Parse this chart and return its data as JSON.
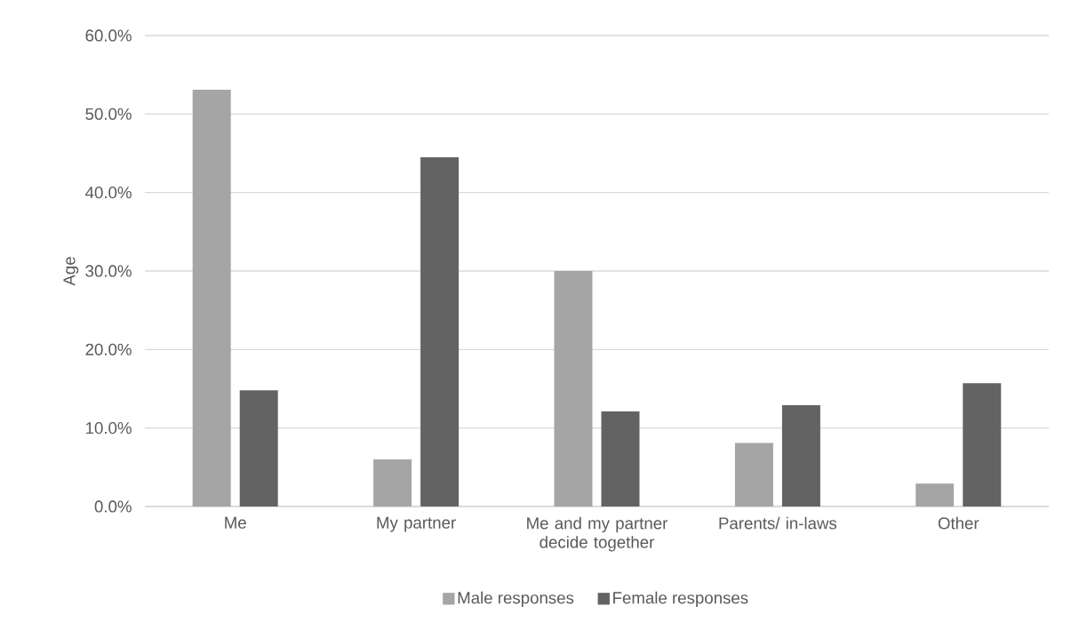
{
  "chart_data": {
    "type": "bar",
    "ylabel": "Age",
    "categories": [
      "Me",
      "My partner",
      "Me and my partner decide together",
      "Parents/ in-laws",
      "Other"
    ],
    "series": [
      {
        "name": "Male responses",
        "color": "#a5a5a5",
        "values": [
          53.1,
          6.0,
          30.0,
          8.1,
          2.9
        ]
      },
      {
        "name": "Female responses",
        "color": "#636363",
        "values": [
          14.8,
          44.5,
          12.1,
          12.9,
          15.7
        ]
      }
    ],
    "ylim": [
      0,
      60
    ],
    "yticks": [
      {
        "value": 0,
        "label": "0.0%"
      },
      {
        "value": 10,
        "label": "10.0%"
      },
      {
        "value": 20,
        "label": "20.0%"
      },
      {
        "value": 30,
        "label": "30.0%"
      },
      {
        "value": 40,
        "label": "40.0%"
      },
      {
        "value": 50,
        "label": "50.0%"
      },
      {
        "value": 60,
        "label": "60.0%"
      }
    ],
    "grid": "y",
    "legend": "bottom"
  }
}
